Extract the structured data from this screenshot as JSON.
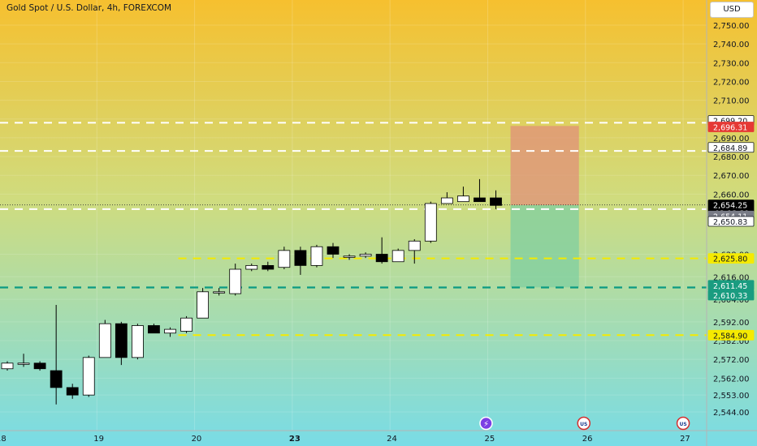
{
  "header": {
    "title": "Gold Spot / U.S. Dollar, 4h, FOREXCOM",
    "currency_button": "USD"
  },
  "colors": {
    "bg_top": "#f6c02f",
    "bg_bottom": "#79dce6",
    "candle_up": "#ffffff",
    "candle_down": "#000000",
    "line_white": "#ffffff",
    "line_yellow": "#f5ea00",
    "line_teal": "#0b9a82",
    "risk_zone": "#e0907a",
    "reward_zone": "#7fcfa0",
    "tag_red": "#e53935",
    "tag_green": "#1a9c80",
    "tag_gray": "#787b86",
    "tag_black": "#000000"
  },
  "chart_data": {
    "type": "candlestick",
    "title": "Gold Spot / U.S. Dollar, 4h, FOREXCOM",
    "ylim": [
      2538,
      2760
    ],
    "y_ticks": [
      2544,
      2553,
      2562,
      2572,
      2582,
      2592,
      2604,
      2616,
      2628,
      2660,
      2670,
      2680,
      2690,
      2700,
      2710,
      2720,
      2730,
      2740,
      2750
    ],
    "y_tick_labels": [
      "2,544.00",
      "2,553.00",
      "2,562.00",
      "2,572.00",
      "2,582.00",
      "2,592.00",
      "2,604.00",
      "2,616.00",
      "2,628.00",
      "2,660.00",
      "2,670.00",
      "2,680.00",
      "2,690.00",
      "2,700.00",
      "2,710.00",
      "2,720.00",
      "2,730.00",
      "2,740.00",
      "2,750.00"
    ],
    "x_labels": [
      {
        "label": "18",
        "index": -0.5
      },
      {
        "label": "19",
        "index": 5.5
      },
      {
        "label": "20",
        "index": 11.5
      },
      {
        "label": "23",
        "index": 17.5
      },
      {
        "label": "24",
        "index": 23.5
      },
      {
        "label": "25",
        "index": 29.5
      },
      {
        "label": "26",
        "index": 35.5
      },
      {
        "label": "27",
        "index": 41.5
      }
    ],
    "bold_x_label": "23",
    "candles": [
      {
        "o": 2567,
        "h": 2571,
        "l": 2566,
        "c": 2570
      },
      {
        "o": 2570,
        "h": 2575,
        "l": 2568,
        "c": 2570
      },
      {
        "o": 2570,
        "h": 2571,
        "l": 2566,
        "c": 2567
      },
      {
        "o": 2566,
        "h": 2601,
        "l": 2548,
        "c": 2557
      },
      {
        "o": 2557,
        "h": 2559,
        "l": 2551,
        "c": 2553
      },
      {
        "o": 2553,
        "h": 2574,
        "l": 2552,
        "c": 2573
      },
      {
        "o": 2573,
        "h": 2593,
        "l": 2573,
        "c": 2591
      },
      {
        "o": 2591,
        "h": 2592,
        "l": 2569,
        "c": 2573
      },
      {
        "o": 2573,
        "h": 2591,
        "l": 2572,
        "c": 2590
      },
      {
        "o": 2590,
        "h": 2591,
        "l": 2586,
        "c": 2586
      },
      {
        "o": 2586,
        "h": 2589,
        "l": 2584,
        "c": 2588
      },
      {
        "o": 2587,
        "h": 2595,
        "l": 2586,
        "c": 2594
      },
      {
        "o": 2594,
        "h": 2610,
        "l": 2594,
        "c": 2608
      },
      {
        "o": 2608,
        "h": 2610,
        "l": 2606,
        "c": 2608
      },
      {
        "o": 2607,
        "h": 2623,
        "l": 2606,
        "c": 2620
      },
      {
        "o": 2620,
        "h": 2623,
        "l": 2619,
        "c": 2622
      },
      {
        "o": 2622,
        "h": 2624,
        "l": 2619,
        "c": 2620
      },
      {
        "o": 2621,
        "h": 2632,
        "l": 2620,
        "c": 2630
      },
      {
        "o": 2630,
        "h": 2632,
        "l": 2617,
        "c": 2622
      },
      {
        "o": 2622,
        "h": 2633,
        "l": 2621,
        "c": 2632
      },
      {
        "o": 2632,
        "h": 2634,
        "l": 2626,
        "c": 2628
      },
      {
        "o": 2627,
        "h": 2628,
        "l": 2625,
        "c": 2627
      },
      {
        "o": 2627,
        "h": 2629,
        "l": 2626,
        "c": 2628
      },
      {
        "o": 2628,
        "h": 2637,
        "l": 2623,
        "c": 2624
      },
      {
        "o": 2624,
        "h": 2631,
        "l": 2624,
        "c": 2630
      },
      {
        "o": 2630,
        "h": 2636,
        "l": 2623,
        "c": 2635
      },
      {
        "o": 2635,
        "h": 2656,
        "l": 2634,
        "c": 2655
      },
      {
        "o": 2655,
        "h": 2661,
        "l": 2655,
        "c": 2658
      },
      {
        "o": 2656,
        "h": 2664,
        "l": 2656,
        "c": 2659
      },
      {
        "o": 2658,
        "h": 2668,
        "l": 2656,
        "c": 2656
      },
      {
        "o": 2658,
        "h": 2662,
        "l": 2652,
        "c": 2654
      }
    ],
    "horizontal_levels": [
      {
        "value": 2698,
        "style": "white"
      },
      {
        "value": 2683,
        "style": "white"
      },
      {
        "value": 2652,
        "style": "white"
      },
      {
        "value": 2625.8,
        "style": "yellow"
      },
      {
        "value": 2610.3,
        "style": "teal"
      },
      {
        "value": 2584.9,
        "style": "yellow"
      }
    ],
    "current_price": 2654.25,
    "position_tool": {
      "start_index": 31,
      "end_index": 35,
      "entry": 2654.11,
      "stop": 2696.31,
      "target": 2610.33
    },
    "price_tags": [
      {
        "label": "2,699.20",
        "value": 2699.2,
        "kind": "white"
      },
      {
        "label": "2,696.31",
        "value": 2695.8,
        "kind": "red"
      },
      {
        "label": "2,684.89",
        "value": 2684.89,
        "kind": "white"
      },
      {
        "label": "2,654.25",
        "value": 2654.25,
        "kind": "black",
        "sub": "02:13:31"
      },
      {
        "label": "2,654.11",
        "value": 2648.4,
        "kind": "gray"
      },
      {
        "label": "2,650.83",
        "value": 2645.5,
        "kind": "white"
      },
      {
        "label": "2,625.80",
        "value": 2625.8,
        "kind": "yellow"
      },
      {
        "label": "2,611.45",
        "value": 2611.45,
        "kind": "green"
      },
      {
        "label": "2,610.33",
        "value": 2606.2,
        "kind": "green"
      },
      {
        "label": "2,584.90",
        "value": 2584.9,
        "kind": "yellow"
      }
    ],
    "event_icons": [
      {
        "index": 29.5,
        "name": "lightning-event-icon",
        "glyph": "⚡"
      },
      {
        "index": 35.5,
        "name": "us-flag-event-icon",
        "glyph": "US"
      },
      {
        "index": 41.6,
        "name": "us-flag-event-icon",
        "glyph": "US"
      }
    ]
  }
}
